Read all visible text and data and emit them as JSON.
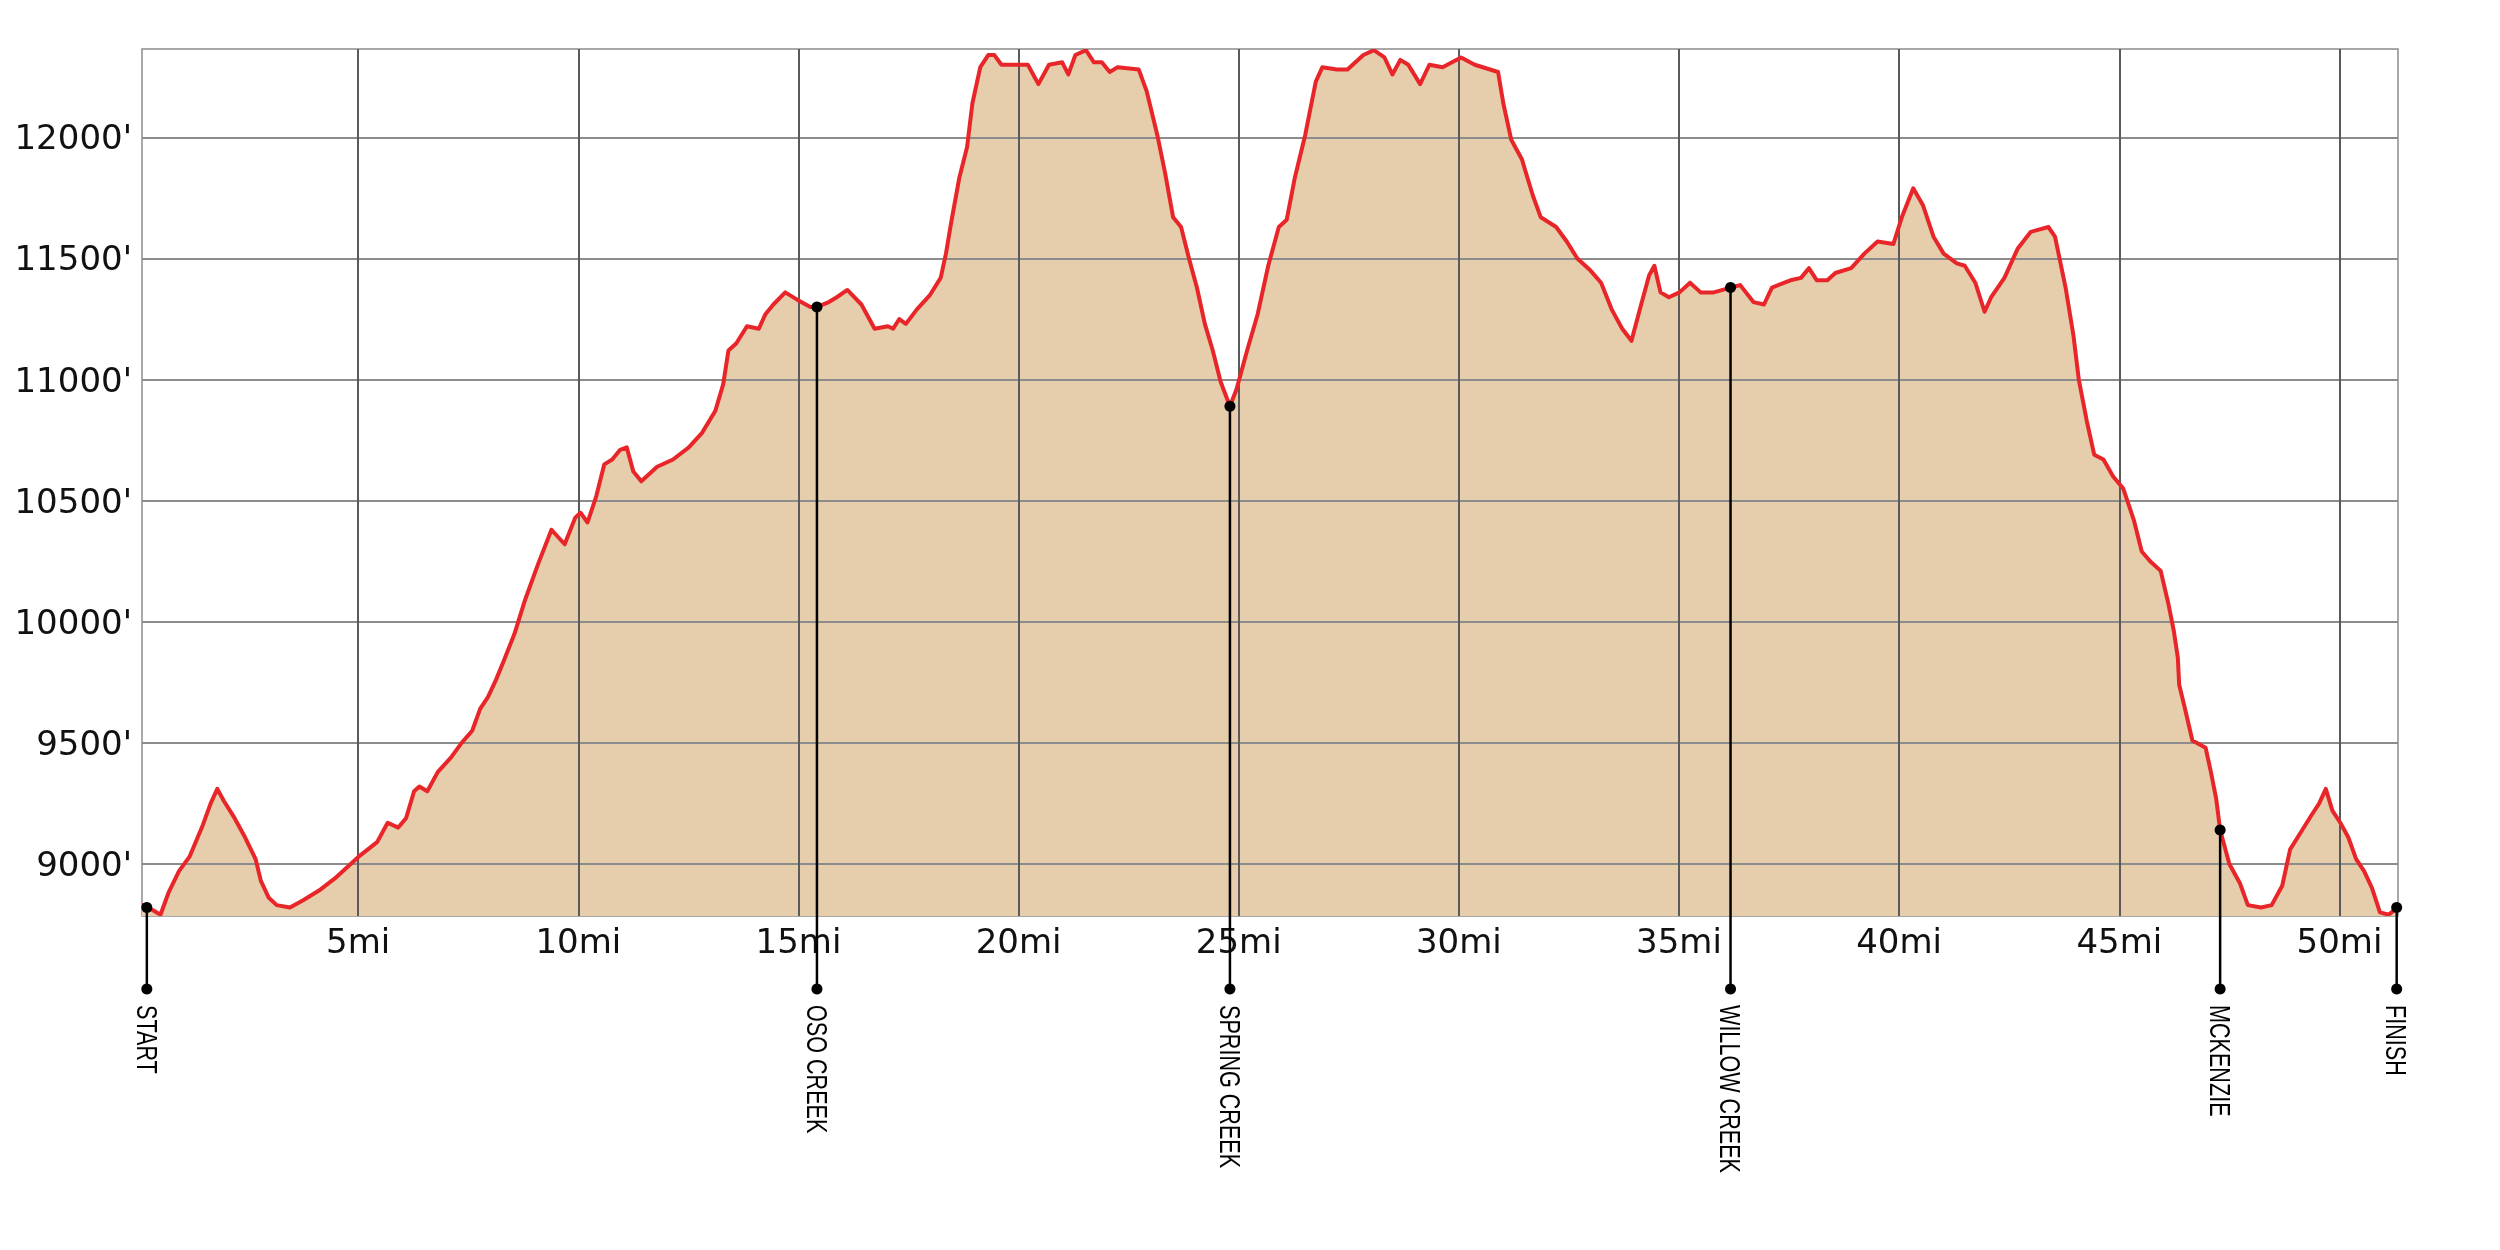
{
  "chart_data": {
    "type": "area",
    "x": [
      0.09,
      0.33,
      0.51,
      0.69,
      0.93,
      1.17,
      1.47,
      1.65,
      1.8,
      1.95,
      2.19,
      2.43,
      2.67,
      2.79,
      2.97,
      3.15,
      3.45,
      3.75,
      4.11,
      4.47,
      4.83,
      5.01,
      5.43,
      5.67,
      5.91,
      6.09,
      6.27,
      6.39,
      6.57,
      6.81,
      7.11,
      7.35,
      7.59,
      7.77,
      7.95,
      8.13,
      8.31,
      8.55,
      8.79,
      9.09,
      9.39,
      9.69,
      9.93,
      10.05,
      10.21,
      10.41,
      10.59,
      10.77,
      10.95,
      11.1,
      11.25,
      11.43,
      11.79,
      12.15,
      12.51,
      12.81,
      13.11,
      13.29,
      13.41,
      13.59,
      13.83,
      14.1,
      14.25,
      14.43,
      14.7,
      14.97,
      15.27,
      15.42,
      15.69,
      15.87,
      16.11,
      16.43,
      16.73,
      17.03,
      17.15,
      17.29,
      17.44,
      17.69,
      17.99,
      18.23,
      18.35,
      18.47,
      18.65,
      18.83,
      18.95,
      19.13,
      19.31,
      19.45,
      19.61,
      19.97,
      20.21,
      20.45,
      20.69,
      20.99,
      21.13,
      21.29,
      21.53,
      21.71,
      21.89,
      22.07,
      22.25,
      22.73,
      22.91,
      23.15,
      23.33,
      23.51,
      23.69,
      23.87,
      24.05,
      24.23,
      24.41,
      24.59,
      24.8,
      24.95,
      25.19,
      25.43,
      25.67,
      25.91,
      26.09,
      26.27,
      26.51,
      26.75,
      26.9,
      27.23,
      27.47,
      27.65,
      27.83,
      28.07,
      28.31,
      28.49,
      28.67,
      28.85,
      29.12,
      29.33,
      29.63,
      30.05,
      30.36,
      30.89,
      31.01,
      31.19,
      31.43,
      31.68,
      31.86,
      32.21,
      32.45,
      32.69,
      32.99,
      33.23,
      33.47,
      33.71,
      33.92,
      34.14,
      34.32,
      34.44,
      34.58,
      34.77,
      35.01,
      35.25,
      35.49,
      35.79,
      36.17,
      36.39,
      36.69,
      36.93,
      37.11,
      37.53,
      37.77,
      37.95,
      38.13,
      38.37,
      38.55,
      38.91,
      39.21,
      39.51,
      39.87,
      40.06,
      40.32,
      40.54,
      40.78,
      41.01,
      41.31,
      41.49,
      41.73,
      41.94,
      42.09,
      42.39,
      42.69,
      42.99,
      43.39,
      43.54,
      43.78,
      43.96,
      44.08,
      44.26,
      44.43,
      44.64,
      44.86,
      45.09,
      45.33,
      45.51,
      45.7,
      45.94,
      46.12,
      46.24,
      46.33,
      46.36,
      46.48,
      46.66,
      46.96,
      47.08,
      47.2,
      47.29,
      47.5,
      47.74,
      47.92,
      48.22,
      48.46,
      48.7,
      48.88,
      49.12,
      49.36,
      49.54,
      49.69,
      49.84,
      50.02,
      50.2,
      50.38,
      50.56,
      50.74,
      50.92,
      51.12,
      51.31
    ],
    "series": [
      {
        "type": "area",
        "color": "#e6cdac",
        "values": [
          8830,
          8810,
          8790,
          8880,
          8970,
          9030,
          9160,
          9250,
          9310,
          9260,
          9190,
          9110,
          9020,
          8930,
          8860,
          8830,
          8820,
          8850,
          8890,
          8940,
          9000,
          9030,
          9090,
          9170,
          9150,
          9190,
          9300,
          9320,
          9300,
          9380,
          9440,
          9500,
          9550,
          9640,
          9690,
          9760,
          9840,
          9950,
          10090,
          10240,
          10380,
          10320,
          10430,
          10450,
          10410,
          10520,
          10650,
          10670,
          10710,
          10720,
          10620,
          10580,
          10640,
          10670,
          10720,
          10780,
          10870,
          10980,
          11120,
          11150,
          11220,
          11210,
          11270,
          11310,
          11360,
          11330,
          11300,
          11300,
          11320,
          11340,
          11370,
          11310,
          11210,
          11220,
          11210,
          11250,
          11230,
          11290,
          11350,
          11420,
          11520,
          11650,
          11830,
          11960,
          12140,
          12290,
          12340,
          12340,
          12300,
          12300,
          12300,
          12220,
          12300,
          12310,
          12260,
          12340,
          12360,
          12310,
          12310,
          12270,
          12290,
          12280,
          12190,
          12010,
          11850,
          11670,
          11630,
          11500,
          11380,
          11230,
          11120,
          10990,
          10890,
          10960,
          11120,
          11270,
          11470,
          11630,
          11660,
          11830,
          12010,
          12230,
          12290,
          12280,
          12280,
          12310,
          12340,
          12360,
          12330,
          12260,
          12320,
          12300,
          12220,
          12300,
          12290,
          12330,
          12300,
          12270,
          12140,
          11990,
          11910,
          11760,
          11670,
          11630,
          11570,
          11500,
          11450,
          11400,
          11290,
          11210,
          11160,
          11310,
          11430,
          11470,
          11360,
          11340,
          11360,
          11400,
          11360,
          11360,
          11380,
          11390,
          11320,
          11310,
          11380,
          11410,
          11420,
          11460,
          11410,
          11410,
          11440,
          11460,
          11520,
          11570,
          11560,
          11670,
          11790,
          11720,
          11590,
          11520,
          11480,
          11470,
          11400,
          11280,
          11340,
          11420,
          11540,
          11610,
          11630,
          11590,
          11380,
          11180,
          11000,
          10830,
          10690,
          10670,
          10600,
          10550,
          10420,
          10290,
          10250,
          10210,
          10070,
          9960,
          9850,
          9740,
          9650,
          9510,
          9480,
          9380,
          9270,
          9140,
          9000,
          8920,
          8830,
          8820,
          8830,
          8910,
          9060,
          9130,
          9200,
          9250,
          9310,
          9220,
          9170,
          9110,
          9020,
          8970,
          8900,
          8800,
          8790,
          8820
        ]
      }
    ],
    "xlim": [
      0.09,
      51.33
    ],
    "ylim": [
      8785,
      12365
    ],
    "xticks": [
      {
        "value": 5,
        "label": "5mi"
      },
      {
        "value": 10,
        "label": "10mi"
      },
      {
        "value": 15,
        "label": "15mi"
      },
      {
        "value": 20,
        "label": "20mi"
      },
      {
        "value": 25,
        "label": "25mi"
      },
      {
        "value": 30,
        "label": "30mi"
      },
      {
        "value": 35,
        "label": "35mi"
      },
      {
        "value": 40,
        "label": "40mi"
      },
      {
        "value": 45,
        "label": "45mi"
      },
      {
        "value": 50,
        "label": "50mi"
      }
    ],
    "yticks": [
      {
        "value": 9000,
        "label": "9000'"
      },
      {
        "value": 9500,
        "label": "9500'"
      },
      {
        "value": 10000,
        "label": "10000'"
      },
      {
        "value": 10500,
        "label": "10500'"
      },
      {
        "value": 11000,
        "label": "11000'"
      },
      {
        "value": 11500,
        "label": "11500'"
      },
      {
        "value": 12000,
        "label": "12000'"
      }
    ],
    "grid": true,
    "annotations": [
      {
        "text": "START",
        "x": 0.2,
        "y": 8820
      },
      {
        "text": "OSO CREEK",
        "x": 15.42,
        "y": 11300
      },
      {
        "text": "SPRING CREEK",
        "x": 24.8,
        "y": 10890
      },
      {
        "text": "WILLOW CREEK",
        "x": 36.17,
        "y": 11380
      },
      {
        "text": "MCKENZIE",
        "x": 47.29,
        "y": 9140
      },
      {
        "text": "FINISH",
        "x": 51.3,
        "y": 8820
      }
    ]
  }
}
